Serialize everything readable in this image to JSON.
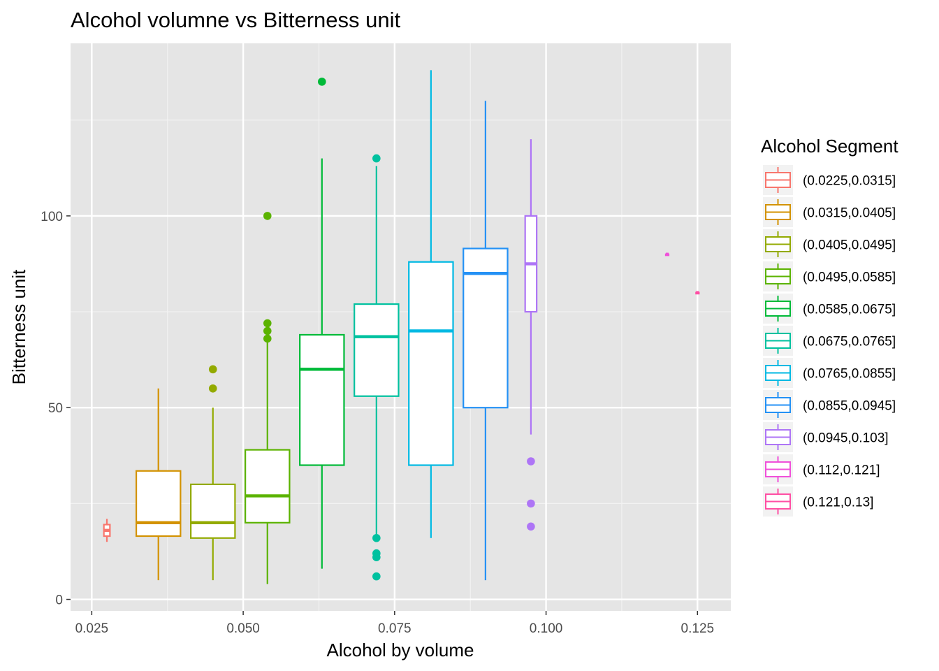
{
  "chart_data": {
    "type": "boxplot",
    "title": "Alcohol volumne vs Bitterness unit",
    "xlabel": "Alcohol by volume",
    "ylabel": "Bitterness unit",
    "xlim": [
      0.0215,
      0.1305
    ],
    "ylim": [
      -3,
      145
    ],
    "x_ticks": [
      0.025,
      0.05,
      0.075,
      0.1,
      0.125
    ],
    "x_tick_labels": [
      "0.025",
      "0.050",
      "0.075",
      "0.100",
      "0.125"
    ],
    "y_ticks": [
      0,
      50,
      100
    ],
    "y_tick_labels": [
      "0",
      "50",
      "100"
    ],
    "grid": true,
    "legend": {
      "title": "Alcohol Segment",
      "position": "right"
    },
    "series": [
      {
        "name": "(0.0225,0.0315]",
        "color": "#F8766D",
        "x": 0.0275,
        "half_width": 0.0005,
        "min": 15,
        "q1": 16.5,
        "median": 18,
        "q3": 19.5,
        "max": 21,
        "outliers": []
      },
      {
        "name": "(0.0315,0.0405]",
        "color": "#D39200",
        "x": 0.036,
        "half_width": 0.00365,
        "min": 5,
        "q1": 16.5,
        "median": 20,
        "q3": 33.5,
        "max": 55,
        "outliers": []
      },
      {
        "name": "(0.0405,0.0495]",
        "color": "#93AA00",
        "x": 0.045,
        "half_width": 0.00365,
        "min": 5,
        "q1": 16,
        "median": 20,
        "q3": 30,
        "max": 50,
        "outliers": [
          55,
          60
        ]
      },
      {
        "name": "(0.0495,0.0585]",
        "color": "#5BB300",
        "x": 0.054,
        "half_width": 0.00365,
        "min": 4,
        "q1": 20,
        "median": 27,
        "q3": 39,
        "max": 67,
        "outliers": [
          68,
          70,
          72,
          100
        ]
      },
      {
        "name": "(0.0585,0.0675]",
        "color": "#00BA38",
        "x": 0.063,
        "half_width": 0.00365,
        "min": 8,
        "q1": 35,
        "median": 60,
        "q3": 69,
        "max": 115,
        "outliers": [
          135
        ]
      },
      {
        "name": "(0.0675,0.0765]",
        "color": "#00C19F",
        "x": 0.072,
        "half_width": 0.00365,
        "min": 17,
        "q1": 53,
        "median": 68.5,
        "q3": 77,
        "max": 113,
        "outliers": [
          6,
          11,
          12,
          16,
          115
        ]
      },
      {
        "name": "(0.0765,0.0855]",
        "color": "#00B9E3",
        "x": 0.081,
        "half_width": 0.00365,
        "min": 16,
        "q1": 35,
        "median": 70,
        "q3": 88,
        "max": 138,
        "outliers": []
      },
      {
        "name": "(0.0855,0.0945]",
        "color": "#2491F5",
        "x": 0.09,
        "half_width": 0.00365,
        "min": 5,
        "q1": 50,
        "median": 85,
        "q3": 91.5,
        "max": 130,
        "outliers": []
      },
      {
        "name": "(0.0945,0.103]",
        "color": "#AE75F6",
        "x": 0.0975,
        "half_width": 0.00095,
        "min": 43,
        "q1": 75,
        "median": 87.5,
        "q3": 100,
        "max": 120,
        "outliers": [
          19,
          25,
          36
        ]
      },
      {
        "name": "(0.112,0.121]",
        "color": "#F050DA",
        "x": 0.12,
        "half_width": 0.0002,
        "min": 90,
        "q1": 90,
        "median": 90,
        "q3": 90,
        "max": 90,
        "outliers": []
      },
      {
        "name": "(0.121,0.13]",
        "color": "#FF4FA4",
        "x": 0.125,
        "half_width": 0.0002,
        "min": 80,
        "q1": 80,
        "median": 80,
        "q3": 80,
        "max": 80,
        "outliers": []
      }
    ]
  }
}
